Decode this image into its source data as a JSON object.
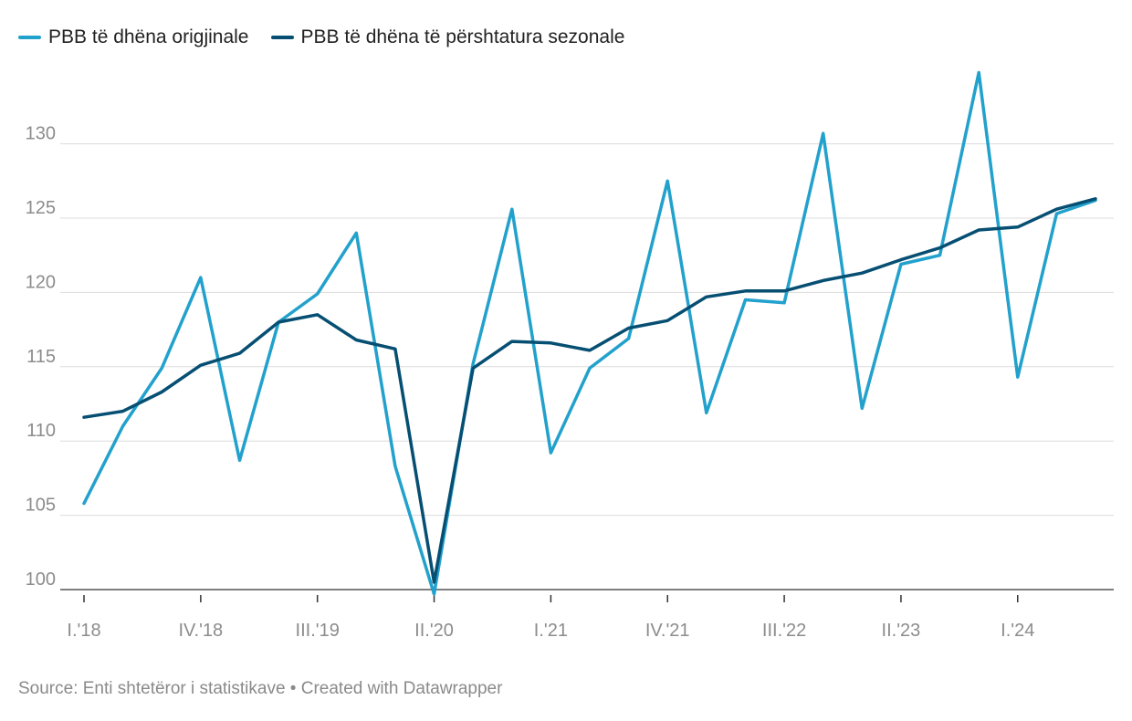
{
  "colors": {
    "original": "#22a1cc",
    "seasonal": "#064f73",
    "grid": "#dcdcdc",
    "tick_text": "#8c8c8c"
  },
  "legend": {
    "original": "PBB të dhëna origjinale",
    "seasonal": "PBB të dhëna të përshtatura sezonale"
  },
  "footer": {
    "source": "Source: Enti shtetëror i statistikave",
    "separator": "•",
    "credit": "Created with Datawrapper"
  },
  "chart_data": {
    "type": "line",
    "title": "",
    "xlabel": "",
    "ylabel": "",
    "ylim": [
      100,
      135
    ],
    "y_ticks": [
      100,
      105,
      110,
      115,
      120,
      125,
      130
    ],
    "grid": true,
    "legend_placement": "top-left",
    "x": [
      "I.'18",
      "II.'18",
      "III.'18",
      "IV.'18",
      "I.'19",
      "II.'19",
      "III.'19",
      "IV.'19",
      "I.'20",
      "II.'20",
      "III.'20",
      "IV.'20",
      "I.'21",
      "II.'21",
      "III.'21",
      "IV.'21",
      "I.'22",
      "II.'22",
      "III.'22",
      "IV.'22",
      "I.'23",
      "II.'23",
      "III.'23",
      "IV.'23",
      "I.'24",
      "II.'24",
      "III.'24"
    ],
    "x_tick_labels": [
      "I.'18",
      "IV.'18",
      "III.'19",
      "II.'20",
      "I.'21",
      "IV.'21",
      "III.'22",
      "II.'23",
      "I.'24"
    ],
    "series": [
      {
        "name": "PBB të dhëna origjinale",
        "values": [
          105.8,
          111.0,
          114.9,
          121.0,
          108.7,
          118.0,
          119.9,
          124.0,
          108.3,
          99.7,
          115.2,
          125.6,
          109.2,
          114.9,
          116.9,
          127.5,
          111.9,
          119.5,
          119.3,
          130.7,
          112.2,
          121.9,
          122.5,
          134.8,
          114.3,
          125.3,
          126.2
        ]
      },
      {
        "name": "PBB të dhëna të përshtatura sezonale",
        "values": [
          111.6,
          112.0,
          113.3,
          115.1,
          115.9,
          118.0,
          118.5,
          116.8,
          116.2,
          100.5,
          114.9,
          116.7,
          116.6,
          116.1,
          117.6,
          118.1,
          119.7,
          120.1,
          120.1,
          120.8,
          121.3,
          122.2,
          123.0,
          124.2,
          124.4,
          125.6,
          126.3
        ]
      }
    ]
  }
}
